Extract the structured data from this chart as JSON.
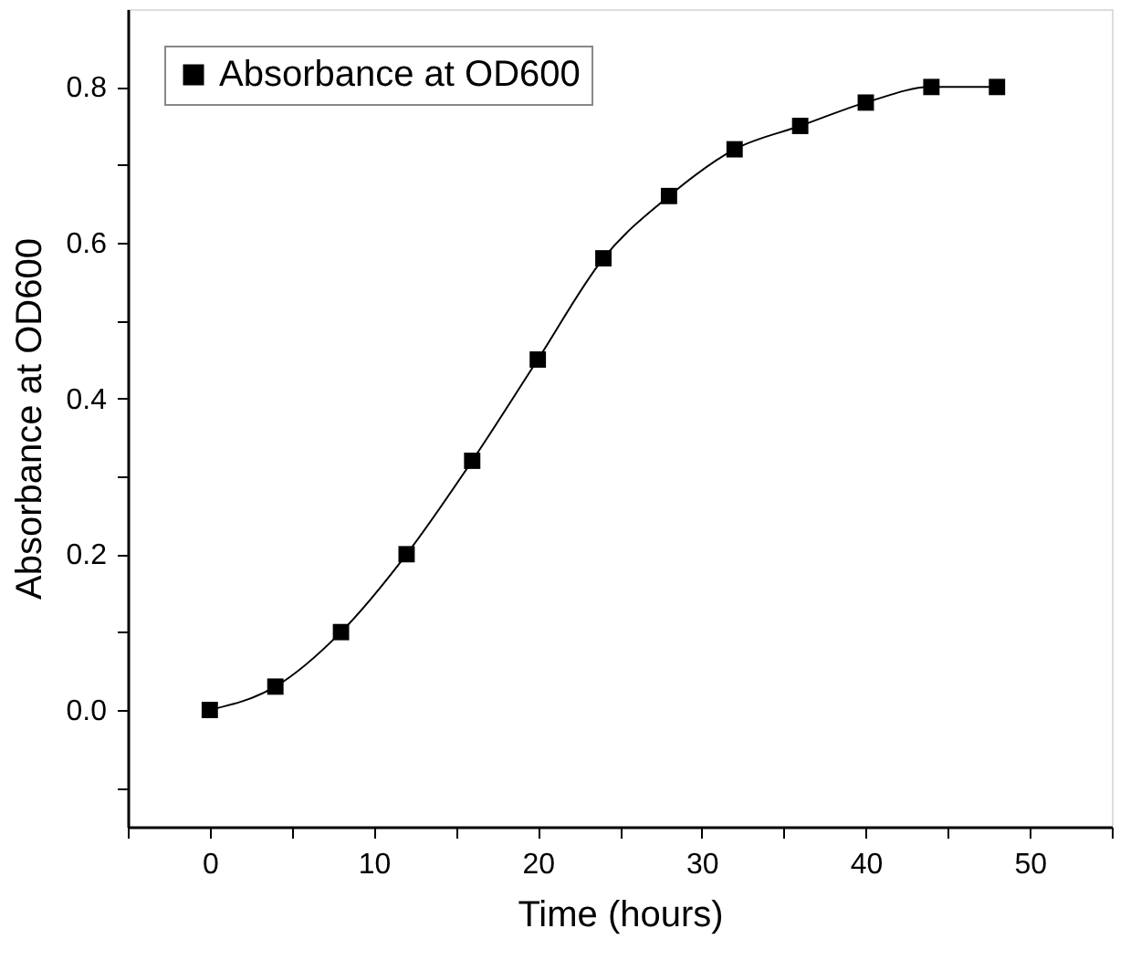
{
  "chart_data": {
    "type": "line",
    "xlabel": "Time (hours)",
    "ylabel": "Absorbance at OD600",
    "x": [
      0,
      4,
      8,
      12,
      16,
      20,
      24,
      28,
      32,
      36,
      40,
      44,
      48
    ],
    "series": [
      {
        "name": "Absorbance at OD600",
        "color": "#000000",
        "values": [
          0,
          0.03,
          0.1,
          0.2,
          0.32,
          0.45,
          0.58,
          0.66,
          0.72,
          0.75,
          0.78,
          0.8,
          0.8
        ]
      }
    ],
    "xlim": [
      -5,
      55
    ],
    "xticks": [
      {
        "value": -5,
        "label": null
      },
      0,
      {
        "value": 5,
        "label": null
      },
      10,
      {
        "value": 15,
        "label": null
      },
      20,
      {
        "value": 25,
        "label": null
      },
      30,
      {
        "value": 35,
        "label": null
      },
      40,
      {
        "value": 45,
        "label": null
      },
      50,
      {
        "value": 55,
        "label": null
      }
    ],
    "ylim": [
      -0.15,
      0.9
    ],
    "yticks": [
      {
        "value": -0.1,
        "label": null
      },
      {
        "value": 0,
        "label": "0.0"
      },
      {
        "value": 0.1,
        "label": null
      },
      0.2,
      {
        "value": 0.3,
        "label": null
      },
      0.4,
      {
        "value": 0.5,
        "label": null
      },
      0.6,
      {
        "value": 0.7,
        "label": null
      },
      0.8
    ],
    "grid": false,
    "legend": "top left",
    "marker": "square",
    "line_style": "solid"
  }
}
